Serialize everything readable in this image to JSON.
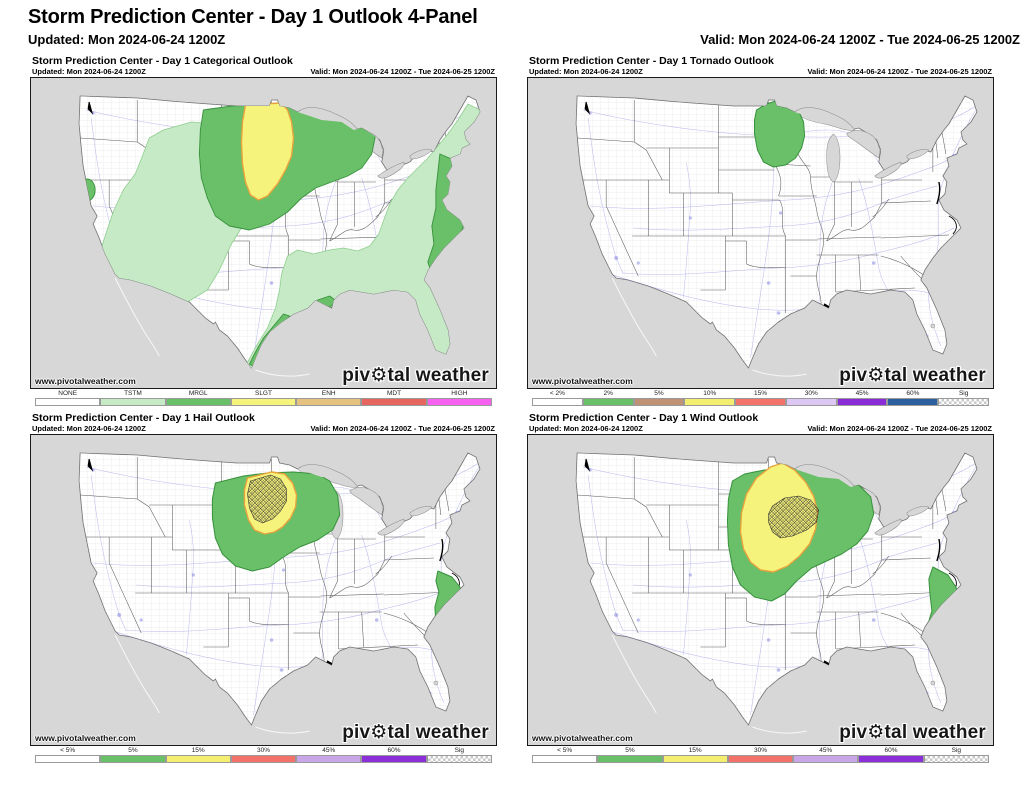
{
  "header": {
    "title": "Storm Prediction Center - Day 1 Outlook 4-Panel",
    "updated": "Updated: Mon 2024-06-24 1200Z",
    "valid": "Valid: Mon 2024-06-24 1200Z - Tue 2024-06-25 1200Z"
  },
  "branding": {
    "watermark": "www.pivotalweather.com",
    "logo_pre": "piv",
    "logo_gear": "⚙",
    "logo_post": "tal weather"
  },
  "map_colors": {
    "outside_land": "#d7d7d7",
    "us_land": "#ffffff",
    "state_lines": "#404040",
    "county_lines": "#d6d6d6",
    "roads": "#7f7fe0",
    "slgt_outline": "#e8a33d",
    "risk_outline_green": "#37913b"
  },
  "panels": [
    {
      "title": "Storm Prediction Center - Day 1 Categorical Outlook",
      "updated": "Updated: Mon 2024-06-24 1200Z",
      "valid": "Valid: Mon 2024-06-24 1200Z - Tue 2024-06-25 1200Z",
      "areas_shown": [
        "TSTM",
        "MRGL",
        "SLGT"
      ],
      "legend": [
        {
          "label": "NONE",
          "color": "#ffffff"
        },
        {
          "label": "TSTM",
          "color": "#c6e9c6"
        },
        {
          "label": "MRGL",
          "color": "#6abf69"
        },
        {
          "label": "SLGT",
          "color": "#f6f37c"
        },
        {
          "label": "ENH",
          "color": "#e5c27f"
        },
        {
          "label": "MDT",
          "color": "#e6665f"
        },
        {
          "label": "HIGH",
          "color": "#f661f0"
        }
      ]
    },
    {
      "title": "Storm Prediction Center - Day 1 Tornado Outlook",
      "updated": "Updated: Mon 2024-06-24 1200Z",
      "valid": "Valid: Mon 2024-06-24 1200Z - Tue 2024-06-25 1200Z",
      "areas_shown": [
        "2%"
      ],
      "legend": [
        {
          "label": "< 2%",
          "color": "#ffffff"
        },
        {
          "label": "2%",
          "color": "#6abf69"
        },
        {
          "label": "5%",
          "color": "#bf9275"
        },
        {
          "label": "10%",
          "color": "#f3ee70"
        },
        {
          "label": "15%",
          "color": "#f3736b"
        },
        {
          "label": "30%",
          "color": "#dcc8f2"
        },
        {
          "label": "45%",
          "color": "#8a2bd8"
        },
        {
          "label": "60%",
          "color": "#2b5f9e"
        },
        {
          "label": "Sig",
          "hatch": true
        }
      ]
    },
    {
      "title": "Storm Prediction Center - Day 1 Hail Outlook",
      "updated": "Updated: Mon 2024-06-24 1200Z",
      "valid": "Valid: Mon 2024-06-24 1200Z - Tue 2024-06-25 1200Z",
      "areas_shown": [
        "5%",
        "15%",
        "Sig"
      ],
      "legend": [
        {
          "label": "< 5%",
          "color": "#ffffff"
        },
        {
          "label": "5%",
          "color": "#6abf69"
        },
        {
          "label": "15%",
          "color": "#f3ee70"
        },
        {
          "label": "30%",
          "color": "#f3736b"
        },
        {
          "label": "45%",
          "color": "#c9a6e8"
        },
        {
          "label": "60%",
          "color": "#8b2fd9"
        },
        {
          "label": "Sig",
          "hatch": true
        }
      ]
    },
    {
      "title": "Storm Prediction Center - Day 1 Wind Outlook",
      "updated": "Updated: Mon 2024-06-24 1200Z",
      "valid": "Valid: Mon 2024-06-24 1200Z - Tue 2024-06-25 1200Z",
      "areas_shown": [
        "5%",
        "15%",
        "Sig"
      ],
      "legend": [
        {
          "label": "< 5%",
          "color": "#ffffff"
        },
        {
          "label": "5%",
          "color": "#6abf69"
        },
        {
          "label": "15%",
          "color": "#f3ee70"
        },
        {
          "label": "30%",
          "color": "#f3736b"
        },
        {
          "label": "45%",
          "color": "#c9a6e8"
        },
        {
          "label": "60%",
          "color": "#8b2fd9"
        },
        {
          "label": "Sig",
          "hatch": true
        }
      ]
    }
  ]
}
